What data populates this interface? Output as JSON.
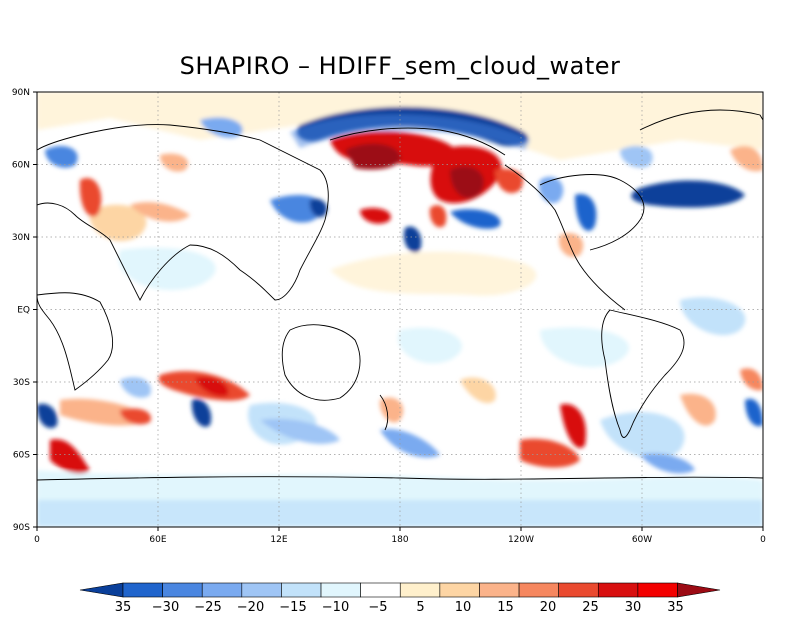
{
  "title": "SHAPIRO – HDIFF_sem_cloud_water",
  "axes": {
    "lat_labels": [
      "90N",
      "60N",
      "30N",
      "EQ",
      "30S",
      "60S",
      "90S"
    ],
    "lon_labels": [
      "0",
      "60E",
      "12E",
      "180",
      "120W",
      "60W",
      "0"
    ]
  },
  "colorbar": {
    "labels": [
      "35",
      "−30",
      "−25",
      "−20",
      "−15",
      "−10",
      "−5",
      "5",
      "10",
      "15",
      "20",
      "25",
      "30",
      "35"
    ],
    "colors": [
      "#0a3f9a",
      "#1f64cc",
      "#4a86e0",
      "#7aaaf0",
      "#9fc5f5",
      "#c2e2fa",
      "#e1f6fd",
      "#ffffff",
      "#fff0cc",
      "#fdd5a4",
      "#fbb38a",
      "#f6875f",
      "#ea4a2f",
      "#d80f0f",
      "#f30000",
      "#9c0b14"
    ]
  }
}
